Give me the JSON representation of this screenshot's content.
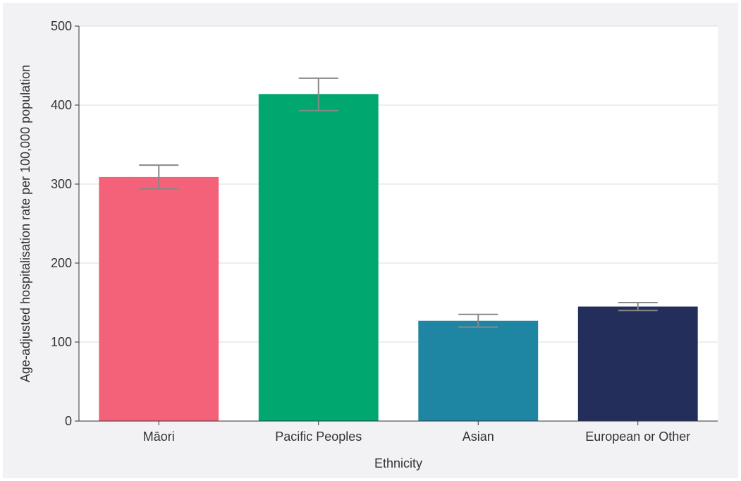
{
  "chart_data": {
    "type": "bar",
    "xlabel": "Ethnicity",
    "ylabel": "Age-adjusted hospitalisation rate per 100,000 population",
    "ylim": [
      0,
      500
    ],
    "yticks": [
      0,
      100,
      200,
      300,
      400,
      500
    ],
    "grid": true,
    "categories": [
      "Māori",
      "Pacific Peoples",
      "Asian",
      "European or Other"
    ],
    "values": [
      309,
      414,
      127,
      145
    ],
    "error_low": [
      294,
      393,
      119,
      140
    ],
    "error_high": [
      324,
      434,
      135,
      150
    ],
    "colors": [
      "#f4627a",
      "#00a870",
      "#1e85a3",
      "#232f5a"
    ],
    "error_color": "#888888",
    "gridline_color": "#dddddd",
    "background_color": "#f2f2f4",
    "plot_background_color": "#ffffff"
  }
}
